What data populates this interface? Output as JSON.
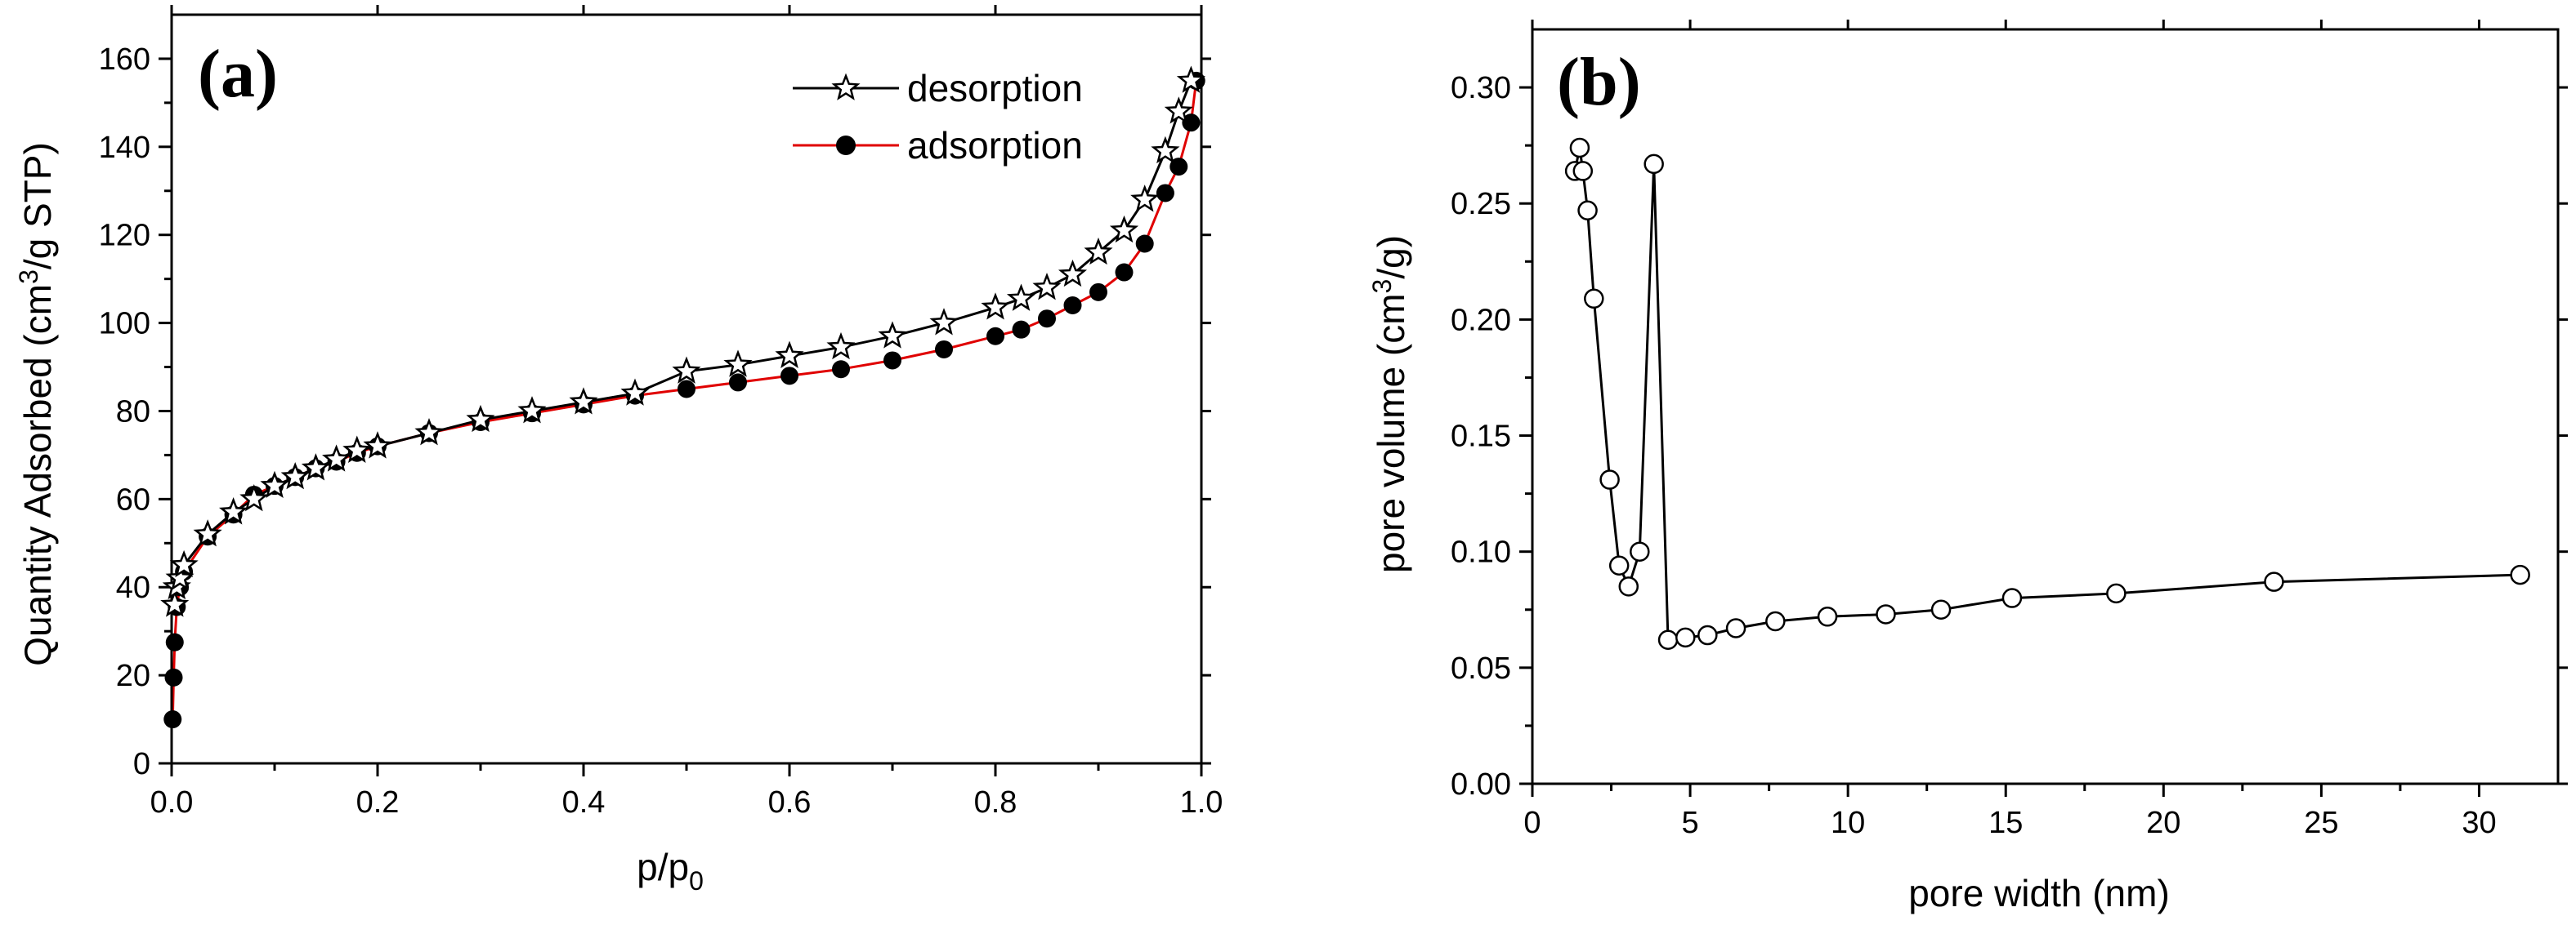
{
  "chart_data": [
    {
      "id": "a",
      "type": "line",
      "panel_label": "(a)",
      "xlabel_main": "p/p",
      "xlabel_sub": "0",
      "ylabel_pre": "Quantity Adsorbed (cm",
      "ylabel_sup": "3",
      "ylabel_post": "/g STP)",
      "xlim": [
        0.0,
        1.0
      ],
      "ylim": [
        0,
        170
      ],
      "xticks": [
        0.0,
        0.2,
        0.4,
        0.6,
        0.8,
        1.0
      ],
      "xtick_labels": [
        "0.0",
        "0.2",
        "0.4",
        "0.6",
        "0.8",
        "1.0"
      ],
      "yticks": [
        0,
        20,
        40,
        60,
        80,
        100,
        120,
        140,
        160
      ],
      "ytick_labels": [
        "0",
        "20",
        "40",
        "60",
        "80",
        "100",
        "120",
        "140",
        "160"
      ],
      "legend_position": "top-right",
      "series": [
        {
          "name": "desorption",
          "color": "#000000",
          "marker": "open-star",
          "x": [
            0.003,
            0.005,
            0.008,
            0.012,
            0.035,
            0.06,
            0.08,
            0.1,
            0.12,
            0.14,
            0.16,
            0.18,
            0.2,
            0.25,
            0.3,
            0.35,
            0.4,
            0.45,
            0.5,
            0.55,
            0.6,
            0.65,
            0.7,
            0.75,
            0.8,
            0.825,
            0.85,
            0.875,
            0.9,
            0.925,
            0.945,
            0.965,
            0.978,
            0.99
          ],
          "y": [
            36,
            40,
            42,
            45,
            52,
            57,
            60,
            63,
            65,
            67,
            69,
            71,
            72,
            75,
            78,
            80,
            82,
            84,
            89,
            90.5,
            92.5,
            94.5,
            97,
            100,
            103.5,
            105.5,
            108,
            111,
            116,
            121,
            128,
            139,
            148,
            155
          ]
        },
        {
          "name": "adsorption",
          "color": "#e00000",
          "marker": "filled-circle",
          "x": [
            0.001,
            0.002,
            0.003,
            0.005,
            0.008,
            0.012,
            0.035,
            0.06,
            0.08,
            0.1,
            0.12,
            0.14,
            0.16,
            0.18,
            0.2,
            0.25,
            0.3,
            0.35,
            0.4,
            0.45,
            0.5,
            0.55,
            0.6,
            0.65,
            0.7,
            0.75,
            0.8,
            0.825,
            0.85,
            0.875,
            0.9,
            0.925,
            0.945,
            0.965,
            0.978,
            0.99,
            0.995
          ],
          "y": [
            10,
            19.5,
            27.5,
            35.5,
            40,
            43.5,
            51.5,
            56.5,
            61,
            63,
            65,
            67,
            68.5,
            70.5,
            72,
            75,
            77.5,
            79.5,
            81.5,
            83.5,
            85,
            86.5,
            88,
            89.5,
            91.5,
            94,
            97,
            98.5,
            101,
            104,
            107,
            111.5,
            118,
            129.5,
            135.5,
            145.5,
            155
          ]
        }
      ]
    },
    {
      "id": "b",
      "type": "line",
      "panel_label": "(b)",
      "xlabel": "pore width (nm)",
      "ylabel_pre": "pore volume (cm",
      "ylabel_sup": "3",
      "ylabel_post": "/g)",
      "xlim": [
        0,
        32.5
      ],
      "ylim": [
        0.0,
        0.325
      ],
      "xticks": [
        0,
        5,
        10,
        15,
        20,
        25,
        30
      ],
      "xtick_labels": [
        "0",
        "5",
        "10",
        "15",
        "20",
        "25",
        "30"
      ],
      "yticks": [
        0.0,
        0.05,
        0.1,
        0.15,
        0.2,
        0.25,
        0.3
      ],
      "ytick_labels": [
        "0.00",
        "0.05",
        "0.10",
        "0.15",
        "0.20",
        "0.25",
        "0.30"
      ],
      "series": [
        {
          "name": "pore volume",
          "color": "#000000",
          "marker": "open-circle",
          "x": [
            1.35,
            1.5,
            1.6,
            1.75,
            1.95,
            2.45,
            2.75,
            3.05,
            3.4,
            3.85,
            4.3,
            4.85,
            5.55,
            6.45,
            7.7,
            9.35,
            11.2,
            12.95,
            15.2,
            18.5,
            23.5,
            31.3
          ],
          "y": [
            0.264,
            0.274,
            0.264,
            0.247,
            0.209,
            0.131,
            0.094,
            0.085,
            0.1,
            0.267,
            0.062,
            0.063,
            0.064,
            0.067,
            0.07,
            0.072,
            0.073,
            0.075,
            0.08,
            0.082,
            0.087,
            0.09
          ]
        }
      ]
    }
  ]
}
